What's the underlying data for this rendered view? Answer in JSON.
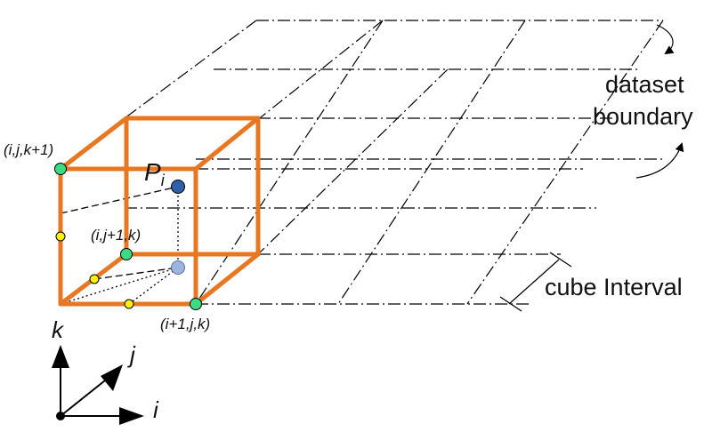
{
  "labels": {
    "dataset_boundary_line1": "dataset",
    "dataset_boundary_line2": "boundary",
    "cube_interval": "cube Interval",
    "node_top": "(i,j,k+1)",
    "node_back": "(i,j+1,k)",
    "node_front": "(i+1,j,k)",
    "point": "P",
    "point_sub": "i",
    "axis_i": "i",
    "axis_j": "j",
    "axis_k": "k"
  },
  "colors": {
    "cube_edge": "#E87722",
    "grid_node": "#3DDC84",
    "interp_point": "#FFF200",
    "point_main": "#2F5FA8",
    "point_projection": "#9DB4DE"
  }
}
